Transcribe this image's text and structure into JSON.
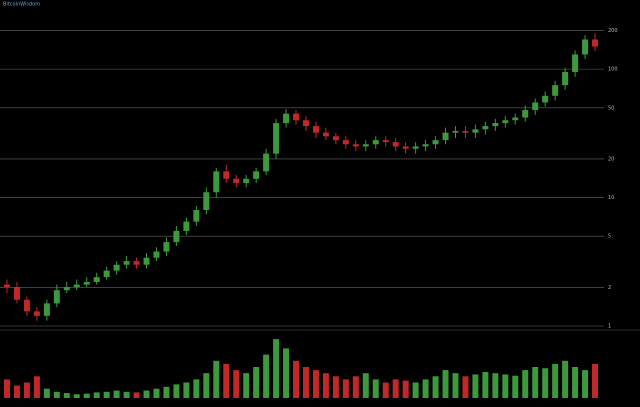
{
  "chart_data": {
    "type": "candlestick",
    "title": "BitcoinWisdom",
    "log_scale": true,
    "grid": true,
    "up_color": "#3c9a3c",
    "down_color": "#c0282a",
    "ylim": [
      1,
      250
    ],
    "yticks": [
      1,
      2,
      5,
      10,
      20,
      50,
      100,
      200
    ],
    "open": [
      2.1,
      2.0,
      1.6,
      1.3,
      1.2,
      1.5,
      1.9,
      2.0,
      2.1,
      2.2,
      2.4,
      2.7,
      3.0,
      3.2,
      3.0,
      3.4,
      3.8,
      4.5,
      5.5,
      6.5,
      8,
      11,
      16,
      14,
      13,
      14,
      16,
      22,
      38,
      45,
      40,
      36,
      32,
      30,
      28,
      26,
      25,
      26,
      28,
      27,
      25,
      24,
      25,
      26,
      28,
      32,
      33,
      32,
      34,
      36,
      38,
      40,
      42,
      48,
      55,
      62,
      75,
      95,
      130,
      170
    ],
    "high": [
      2.3,
      2.2,
      1.7,
      1.4,
      1.6,
      2.1,
      2.2,
      2.3,
      2.4,
      2.6,
      2.9,
      3.2,
      3.5,
      3.4,
      3.7,
      4.1,
      4.9,
      6.0,
      7.0,
      8.6,
      12,
      17,
      18,
      15,
      15,
      17,
      24,
      41,
      49,
      48,
      43,
      39,
      35,
      32,
      30,
      28,
      28,
      30,
      30,
      29,
      27,
      27,
      28,
      30,
      35,
      36,
      36,
      37,
      39,
      41,
      43,
      45,
      52,
      59,
      67,
      81,
      103,
      140,
      184,
      190
    ],
    "low": [
      1.8,
      1.5,
      1.2,
      1.1,
      1.1,
      1.4,
      1.8,
      1.9,
      2.0,
      2.1,
      2.3,
      2.5,
      2.8,
      2.8,
      2.8,
      3.2,
      3.5,
      4.2,
      5.1,
      6.0,
      7.4,
      10,
      13,
      12,
      12,
      13,
      15,
      20,
      35,
      37,
      33,
      29,
      28,
      26,
      24,
      23,
      23,
      24,
      25,
      23,
      22,
      22,
      23,
      24,
      26,
      29,
      29,
      29,
      31,
      33,
      35,
      37,
      39,
      44,
      51,
      57,
      69,
      87,
      120,
      138
    ],
    "close": [
      2.0,
      1.6,
      1.3,
      1.2,
      1.5,
      1.9,
      2.0,
      2.1,
      2.2,
      2.4,
      2.7,
      3.0,
      3.2,
      3.0,
      3.4,
      3.8,
      4.5,
      5.5,
      6.5,
      8,
      11,
      16,
      14,
      13,
      14,
      16,
      22,
      38,
      45,
      40,
      36,
      32,
      30,
      28,
      26,
      25,
      26,
      28,
      27,
      25,
      24,
      25,
      26,
      28,
      32,
      33,
      32,
      34,
      36,
      38,
      40,
      42,
      48,
      55,
      62,
      75,
      95,
      130,
      170,
      150
    ],
    "volume": [
      30,
      20,
      25,
      35,
      15,
      10,
      8,
      6,
      7,
      9,
      10,
      12,
      10,
      9,
      12,
      15,
      18,
      22,
      25,
      30,
      40,
      60,
      55,
      45,
      40,
      50,
      70,
      95,
      80,
      60,
      50,
      45,
      40,
      35,
      30,
      35,
      40,
      30,
      25,
      30,
      28,
      25,
      30,
      35,
      45,
      40,
      35,
      38,
      42,
      40,
      38,
      36,
      45,
      50,
      48,
      55,
      60,
      50,
      45,
      55
    ],
    "vlim": [
      0,
      100
    ]
  }
}
